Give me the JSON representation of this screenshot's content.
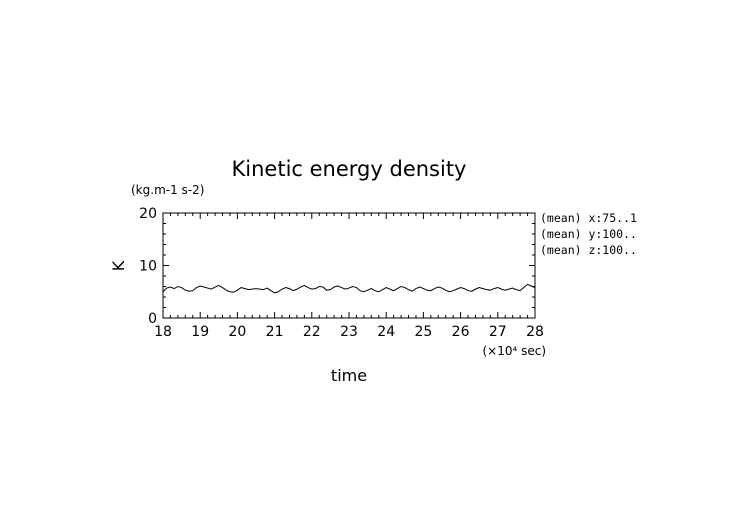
{
  "chart_data": {
    "type": "line",
    "title": "Kinetic energy density",
    "units_label": "(kg.m-1 s-2)",
    "ylabel": "K",
    "xlabel": "time",
    "x_scale_label": "(×10⁴ sec)",
    "xlim": [
      18,
      28
    ],
    "ylim": [
      0,
      20
    ],
    "x_ticks": [
      "18",
      "19",
      "20",
      "21",
      "22",
      "23",
      "24",
      "25",
      "26",
      "27",
      "28"
    ],
    "y_ticks": [
      "0",
      "10",
      "20"
    ],
    "annotations": [
      "(mean) x:75..1",
      "(mean) y:100..",
      "(mean) z:100.."
    ],
    "series": [
      {
        "x": [
          18.0,
          18.1,
          18.2,
          18.3,
          18.4,
          18.5,
          18.6,
          18.7,
          18.8,
          18.9,
          19.0,
          19.1,
          19.2,
          19.3,
          19.4,
          19.5,
          19.6,
          19.7,
          19.8,
          19.9,
          20.0,
          20.1,
          20.2,
          20.3,
          20.4,
          20.5,
          20.6,
          20.7,
          20.8,
          20.9,
          21.0,
          21.1,
          21.2,
          21.3,
          21.4,
          21.5,
          21.6,
          21.7,
          21.8,
          21.9,
          22.0,
          22.1,
          22.2,
          22.3,
          22.4,
          22.5,
          22.6,
          22.7,
          22.8,
          22.9,
          23.0,
          23.1,
          23.2,
          23.3,
          23.4,
          23.5,
          23.6,
          23.7,
          23.8,
          23.9,
          24.0,
          24.1,
          24.2,
          24.3,
          24.4,
          24.5,
          24.6,
          24.7,
          24.8,
          24.9,
          25.0,
          25.1,
          25.2,
          25.3,
          25.4,
          25.5,
          25.6,
          25.7,
          25.8,
          25.9,
          26.0,
          26.1,
          26.2,
          26.3,
          26.4,
          26.5,
          26.6,
          26.7,
          26.8,
          26.9,
          27.0,
          27.1,
          27.2,
          27.3,
          27.4,
          27.5,
          27.6,
          27.7,
          27.8,
          27.9,
          28.0
        ],
        "y": [
          5.0,
          5.7,
          5.9,
          5.6,
          6.0,
          5.8,
          5.3,
          5.1,
          5.2,
          5.8,
          6.1,
          5.9,
          5.7,
          5.5,
          5.9,
          6.2,
          5.8,
          5.3,
          5.0,
          4.9,
          5.3,
          5.8,
          5.6,
          5.4,
          5.5,
          5.6,
          5.5,
          5.4,
          5.7,
          5.2,
          4.8,
          5.0,
          5.5,
          5.8,
          5.6,
          5.2,
          5.5,
          5.9,
          6.2,
          5.8,
          5.5,
          5.6,
          6.0,
          5.9,
          5.3,
          5.4,
          5.9,
          6.1,
          5.8,
          5.5,
          5.7,
          6.0,
          5.8,
          5.2,
          5.0,
          5.3,
          5.6,
          5.2,
          5.0,
          5.4,
          5.8,
          5.5,
          5.2,
          5.6,
          6.0,
          5.8,
          5.4,
          5.1,
          5.6,
          5.9,
          5.6,
          5.3,
          5.2,
          5.6,
          5.9,
          5.7,
          5.3,
          5.0,
          5.2,
          5.5,
          5.8,
          5.6,
          5.2,
          5.1,
          5.5,
          5.8,
          5.6,
          5.4,
          5.3,
          5.6,
          5.8,
          5.5,
          5.3,
          5.5,
          5.7,
          5.4,
          5.2,
          5.8,
          6.4,
          6.1,
          5.8
        ]
      }
    ]
  }
}
